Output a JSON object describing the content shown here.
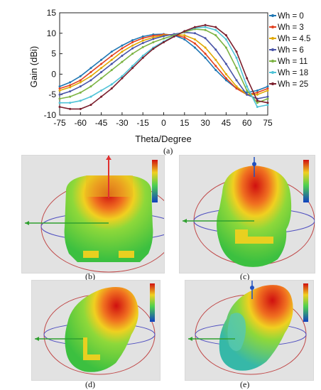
{
  "figure": {
    "captions": [
      "(a)",
      "(b)",
      "(c)",
      "(d)",
      "(e)"
    ]
  },
  "chart_data": {
    "type": "line",
    "xlabel": "Theta/Degree",
    "ylabel": "Gain (dBi)",
    "xlim": [
      -75,
      75
    ],
    "ylim": [
      -10,
      15
    ],
    "xticks": [
      -75,
      -60,
      -45,
      -30,
      -15,
      0,
      15,
      30,
      45,
      60,
      75
    ],
    "yticks": [
      -10,
      -5,
      0,
      5,
      10,
      15
    ],
    "grid": false,
    "legend": "right",
    "x": [
      -75,
      -67.5,
      -60,
      -52.5,
      -45,
      -37.5,
      -30,
      -22.5,
      -15,
      -7.5,
      0,
      7.5,
      15,
      22.5,
      30,
      37.5,
      45,
      52.5,
      60,
      67.5,
      75
    ],
    "series": [
      {
        "name": "Wh = 0",
        "color": "#1f77b4",
        "values": [
          -3.0,
          -2.0,
          -0.5,
          1.5,
          3.5,
          5.5,
          7.0,
          8.3,
          9.2,
          9.7,
          9.8,
          9.5,
          8.5,
          6.5,
          4.0,
          1.0,
          -1.5,
          -3.5,
          -4.5,
          -4.0,
          -3.0
        ]
      },
      {
        "name": "Wh = 3",
        "color": "#e2401f",
        "values": [
          -3.5,
          -2.7,
          -1.5,
          0.5,
          2.5,
          4.5,
          6.3,
          7.8,
          8.8,
          9.4,
          9.7,
          9.6,
          9.0,
          7.5,
          5.0,
          2.0,
          -1.0,
          -3.5,
          -5.0,
          -4.5,
          -3.5
        ]
      },
      {
        "name": "Wh = 4.5",
        "color": "#e0a800",
        "values": [
          -4.0,
          -3.2,
          -2.0,
          -0.5,
          1.5,
          3.5,
          5.5,
          7.0,
          8.2,
          9.0,
          9.5,
          9.7,
          9.5,
          8.5,
          6.5,
          3.5,
          0.0,
          -3.0,
          -5.0,
          -5.0,
          -4.0
        ]
      },
      {
        "name": "Wh = 6",
        "color": "#4a55a8",
        "values": [
          -5.0,
          -4.2,
          -3.0,
          -1.5,
          0.5,
          2.5,
          4.5,
          6.3,
          7.6,
          8.6,
          9.3,
          9.8,
          10.2,
          10.0,
          8.8,
          6.0,
          2.5,
          -1.5,
          -5.0,
          -6.0,
          -5.5
        ]
      },
      {
        "name": "Wh = 11",
        "color": "#7cb342",
        "values": [
          -6.0,
          -5.5,
          -4.5,
          -3.0,
          -1.0,
          1.0,
          3.0,
          5.0,
          6.6,
          7.8,
          8.7,
          9.5,
          10.3,
          11.0,
          10.8,
          9.5,
          6.5,
          1.5,
          -4.0,
          -7.0,
          -6.0
        ]
      },
      {
        "name": "Wh = 18",
        "color": "#4fc3d7",
        "values": [
          -7.0,
          -7.0,
          -6.5,
          -5.5,
          -4.0,
          -2.5,
          -0.5,
          2.0,
          4.5,
          6.5,
          8.0,
          9.3,
          10.5,
          11.3,
          11.5,
          10.8,
          8.5,
          4.0,
          -3.0,
          -8.0,
          -7.5
        ]
      },
      {
        "name": "Wh = 25",
        "color": "#7b1e2c",
        "values": [
          -8.0,
          -8.5,
          -8.5,
          -7.5,
          -5.5,
          -3.5,
          -1.0,
          1.5,
          4.0,
          6.2,
          7.8,
          9.2,
          10.5,
          11.5,
          12.0,
          11.5,
          9.5,
          5.5,
          -1.0,
          -6.5,
          -7.0
        ]
      }
    ]
  }
}
